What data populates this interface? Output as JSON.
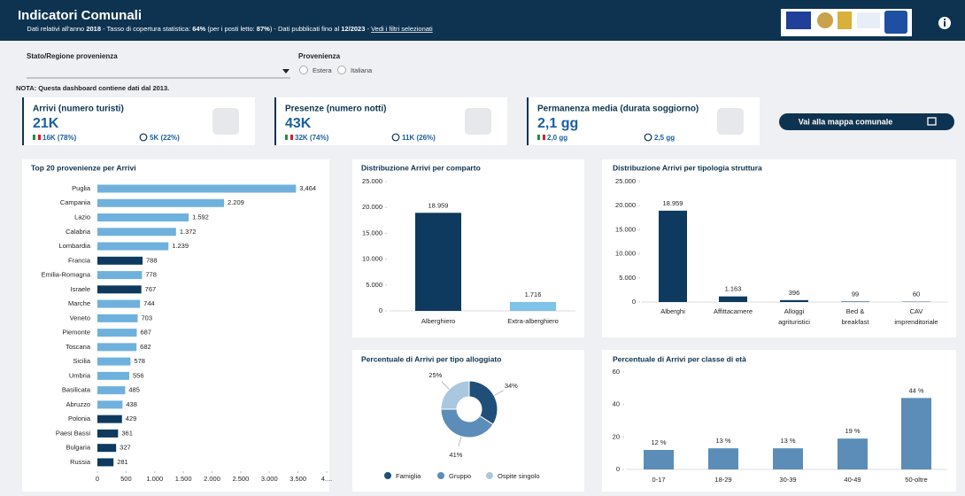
{
  "header": {
    "title": "Indicatori Comunali",
    "subtitle": [
      "Dati relativi all'anno ",
      "2018",
      " - Tasso di copertura statistica: ",
      "64%",
      " (per i posti letto: ",
      "87%",
      ") - Dati pubblicati fino al ",
      "12/2023",
      " - ",
      "Vedi i filtri selezionati"
    ]
  },
  "filters": {
    "region_label": "Stato/Regione provenienza",
    "origin_label": "Provenienza",
    "options": [
      "Estera",
      "Italiana"
    ]
  },
  "note": "NOTA: Questa dashboard contiene dati dal 2013.",
  "kpis": [
    {
      "title": "Arrivi (numero turisti)",
      "value": "21K",
      "italian": "16K (78%)",
      "foreign": "5K (22%)"
    },
    {
      "title": "Presenze (numero notti)",
      "value": "43K",
      "italian": "32K (74%)",
      "foreign": "11K (26%)"
    },
    {
      "title": "Permanenza media (durata soggiorno)",
      "value": "2,1 gg",
      "italian": "2,0 gg",
      "foreign": "2,5 gg"
    }
  ],
  "button": "Vai alla mappa comunale",
  "chart_data": [
    {
      "type": "barh",
      "title": "Top 20 provenienze per Arrivi",
      "categories": [
        "Puglia",
        "Campania",
        "Lazio",
        "Calabria",
        "Lombardia",
        "Francia",
        "Emilia-Romagna",
        "Israele",
        "Marche",
        "Veneto",
        "Piemonte",
        "Toscana",
        "Sicilia",
        "Umbria",
        "Basilicata",
        "Abruzzo",
        "Polonia",
        "Paesi Bassi",
        "Bulgaria",
        "Russia"
      ],
      "values": [
        3464,
        2209,
        1592,
        1372,
        1239,
        788,
        778,
        767,
        744,
        703,
        687,
        682,
        578,
        556,
        485,
        438,
        429,
        361,
        327,
        281
      ],
      "value_labels": [
        "3,464",
        "2.209",
        "1.592",
        "1.372",
        "1.239",
        "788",
        "778",
        "767",
        "744",
        "703",
        "687",
        "682",
        "578",
        "556",
        "485",
        "438",
        "429",
        "361",
        "327",
        "281"
      ],
      "colors": [
        "#6fb1dd",
        "#6fb1dd",
        "#6fb1dd",
        "#6fb1dd",
        "#6fb1dd",
        "#0d3a5e",
        "#6fb1dd",
        "#0d3a5e",
        "#6fb1dd",
        "#6fb1dd",
        "#6fb1dd",
        "#6fb1dd",
        "#6fb1dd",
        "#6fb1dd",
        "#6fb1dd",
        "#6fb1dd",
        "#0d3a5e",
        "#0d3a5e",
        "#0d3a5e",
        "#0d3a5e"
      ],
      "xlim": [
        0,
        4000
      ],
      "xticks": [
        0,
        500,
        {
          "value": 1000,
          "label": "1.000"
        },
        {
          "value": 1500,
          "label": "1.500"
        },
        {
          "value": 2000,
          "label": "2.000"
        },
        {
          "value": 2500,
          "label": "2.500"
        },
        {
          "value": 3000,
          "label": "3.000"
        },
        {
          "value": 3500,
          "label": "3.500"
        },
        {
          "value": 4000,
          "label": "4...."
        }
      ]
    },
    {
      "type": "bar",
      "title": "Distribuzione Arrivi per comparto",
      "categories": [
        "Alberghiero",
        "Extra-alberghiero"
      ],
      "values": [
        18959,
        1716
      ],
      "value_labels": [
        "18.959",
        "1.716"
      ],
      "colors": [
        "#0d3a5e",
        "#7ec3e8"
      ],
      "ylim": [
        0,
        25000
      ],
      "yticks": [
        0,
        {
          "value": 5000,
          "label": "5.000"
        },
        {
          "value": 10000,
          "label": "10.000"
        },
        {
          "value": 15000,
          "label": "15.000"
        },
        {
          "value": 20000,
          "label": "20.000"
        },
        {
          "value": 25000,
          "label": "25.000"
        }
      ]
    },
    {
      "type": "bar",
      "title": "Distribuzione Arrivi per tipologia struttura",
      "categories": [
        [
          "Alberghi"
        ],
        [
          "Affittacamere"
        ],
        [
          "Alloggi",
          "agrituristici"
        ],
        [
          "Bed &",
          "breakfast"
        ],
        [
          "CAV",
          "imprenditoriale"
        ]
      ],
      "values": [
        18959,
        1163,
        396,
        99,
        60
      ],
      "value_labels": [
        "18.959",
        "1.163",
        "396",
        "99",
        "60"
      ],
      "color": "#0d3a5e",
      "ylim": [
        0,
        25000
      ],
      "yticks": [
        0,
        {
          "value": 5000,
          "label": "5.000"
        },
        {
          "value": 10000,
          "label": "10.000"
        },
        {
          "value": 15000,
          "label": "15.000"
        },
        {
          "value": 20000,
          "label": "20.000"
        },
        {
          "value": 25000,
          "label": "25.000"
        }
      ]
    },
    {
      "type": "donut",
      "title": "Percentuale di Arrivi per tipo alloggiato",
      "categories": [
        "Famiglia",
        "Gruppo",
        "Ospite singolo"
      ],
      "values": [
        34,
        41,
        25
      ],
      "value_labels": [
        "34%",
        "41%",
        "25%"
      ],
      "colors": [
        "#1f4e79",
        "#5b8db8",
        "#a9c8e0"
      ]
    },
    {
      "type": "bar",
      "title": "Percentuale di Arrivi per classe di età",
      "categories": [
        "0-17",
        "18-29",
        "30-39",
        "40-49",
        "50-oltre"
      ],
      "values": [
        12,
        13,
        13,
        19,
        44
      ],
      "value_labels": [
        "12 %",
        "13 %",
        "13 %",
        "19 %",
        "44 %"
      ],
      "color": "#5b8db8",
      "ylim": [
        0,
        60
      ],
      "yticks": [
        0,
        20,
        40,
        60
      ]
    }
  ]
}
